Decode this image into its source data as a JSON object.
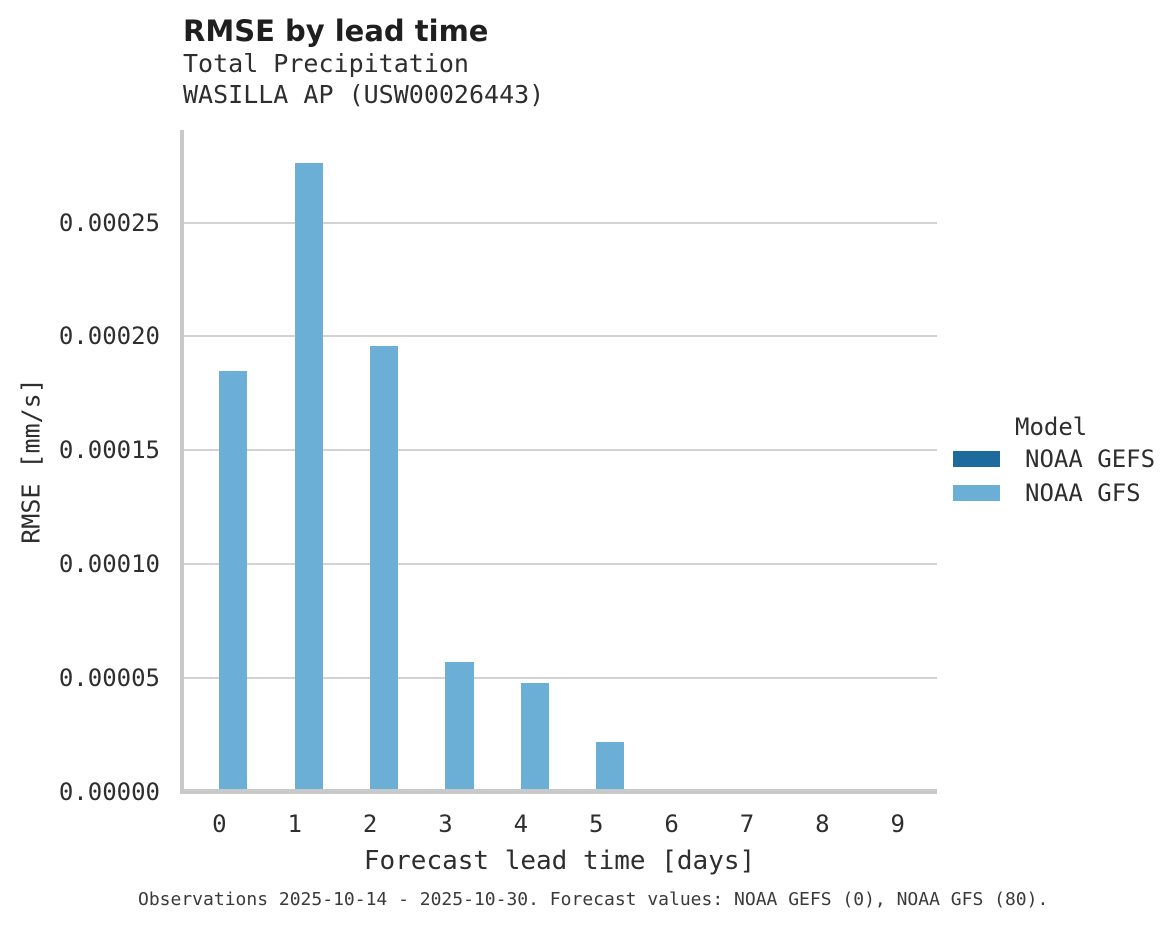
{
  "header": {
    "title": "RMSE by lead time",
    "subtitle1": "Total Precipitation",
    "subtitle2": "WASILLA AP (USW00026443)"
  },
  "legend": {
    "title": "Model",
    "items": [
      {
        "label": "NOAA GEFS",
        "color": "#1D6B9D"
      },
      {
        "label": "NOAA GFS",
        "color": "#6BAFD7"
      }
    ]
  },
  "caption": "Observations 2025-10-14 - 2025-10-30. Forecast values: NOAA GEFS (0), NOAA GFS (80).",
  "chart_data": {
    "type": "bar",
    "title": "RMSE by lead time",
    "subtitle": "Total Precipitation / WASILLA AP (USW00026443)",
    "xlabel": "Forecast lead time [days]",
    "ylabel": "RMSE [mm/s]",
    "categories": [
      "0",
      "1",
      "2",
      "3",
      "4",
      "5",
      "6",
      "7",
      "8",
      "9"
    ],
    "series": [
      {
        "name": "NOAA GEFS",
        "color": "#1D6B9D",
        "values": [
          0,
          0,
          0,
          0,
          0,
          0,
          0,
          0,
          0,
          0
        ]
      },
      {
        "name": "NOAA GFS",
        "color": "#6BAFD7",
        "values": [
          0.000185,
          0.000276,
          0.000196,
          5.7e-05,
          4.8e-05,
          2.2e-05,
          0,
          0,
          0,
          0
        ]
      }
    ],
    "ylim": [
      0,
      0.00029
    ],
    "yticks": [
      {
        "label": "0.00000",
        "value": 0.0
      },
      {
        "label": "0.00005",
        "value": 5e-05
      },
      {
        "label": "0.00010",
        "value": 0.0001
      },
      {
        "label": "0.00015",
        "value": 0.00015
      },
      {
        "label": "0.00020",
        "value": 0.0002
      },
      {
        "label": "0.00025",
        "value": 0.00025
      }
    ],
    "grid": true,
    "legend_title": "Model",
    "legend_position": "right-middle"
  }
}
